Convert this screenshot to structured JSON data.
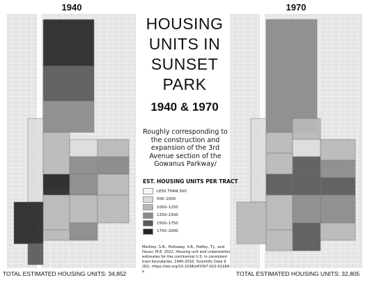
{
  "maps": [
    {
      "year": "1940",
      "total": "TOTAL ESTIMATED HOUSING UNITS: 34,852"
    },
    {
      "year": "1970",
      "total": "TOTAL ESTIMATED HOUSING UNITS: 32,805"
    }
  ],
  "title": {
    "main": "HOUSING UNITS IN SUNSET PARK",
    "years": "1940 & 1970"
  },
  "description": "Roughly corresponding to the construction and expansion of the 3rd Avenue section of the Gowanus Parkway/",
  "legend": {
    "title": "EST. HOUSING UNITS PER TRACT",
    "items": [
      {
        "label": "LESS THAN 500",
        "color": "#f7f7f7"
      },
      {
        "label": "500–1000",
        "color": "#dcdcdc"
      },
      {
        "label": "1000–1250",
        "color": "#b9b9b9"
      },
      {
        "label": "1250–1500",
        "color": "#8a8a8a"
      },
      {
        "label": "1500–1750",
        "color": "#585858"
      },
      {
        "label": "1750–2000",
        "color": "#262626"
      }
    ]
  },
  "citation": "Markley, S.N., Holloway, S.R., Hafley, T.J., and Hauer, M.E. 2022. Housing unit and urbanization estimates for the continental U.S. in consistent tract boundaries, 1940-2010. Scientific Data 9 (82). https://doi.org/10.1038/s41597-022-01184-x"
}
